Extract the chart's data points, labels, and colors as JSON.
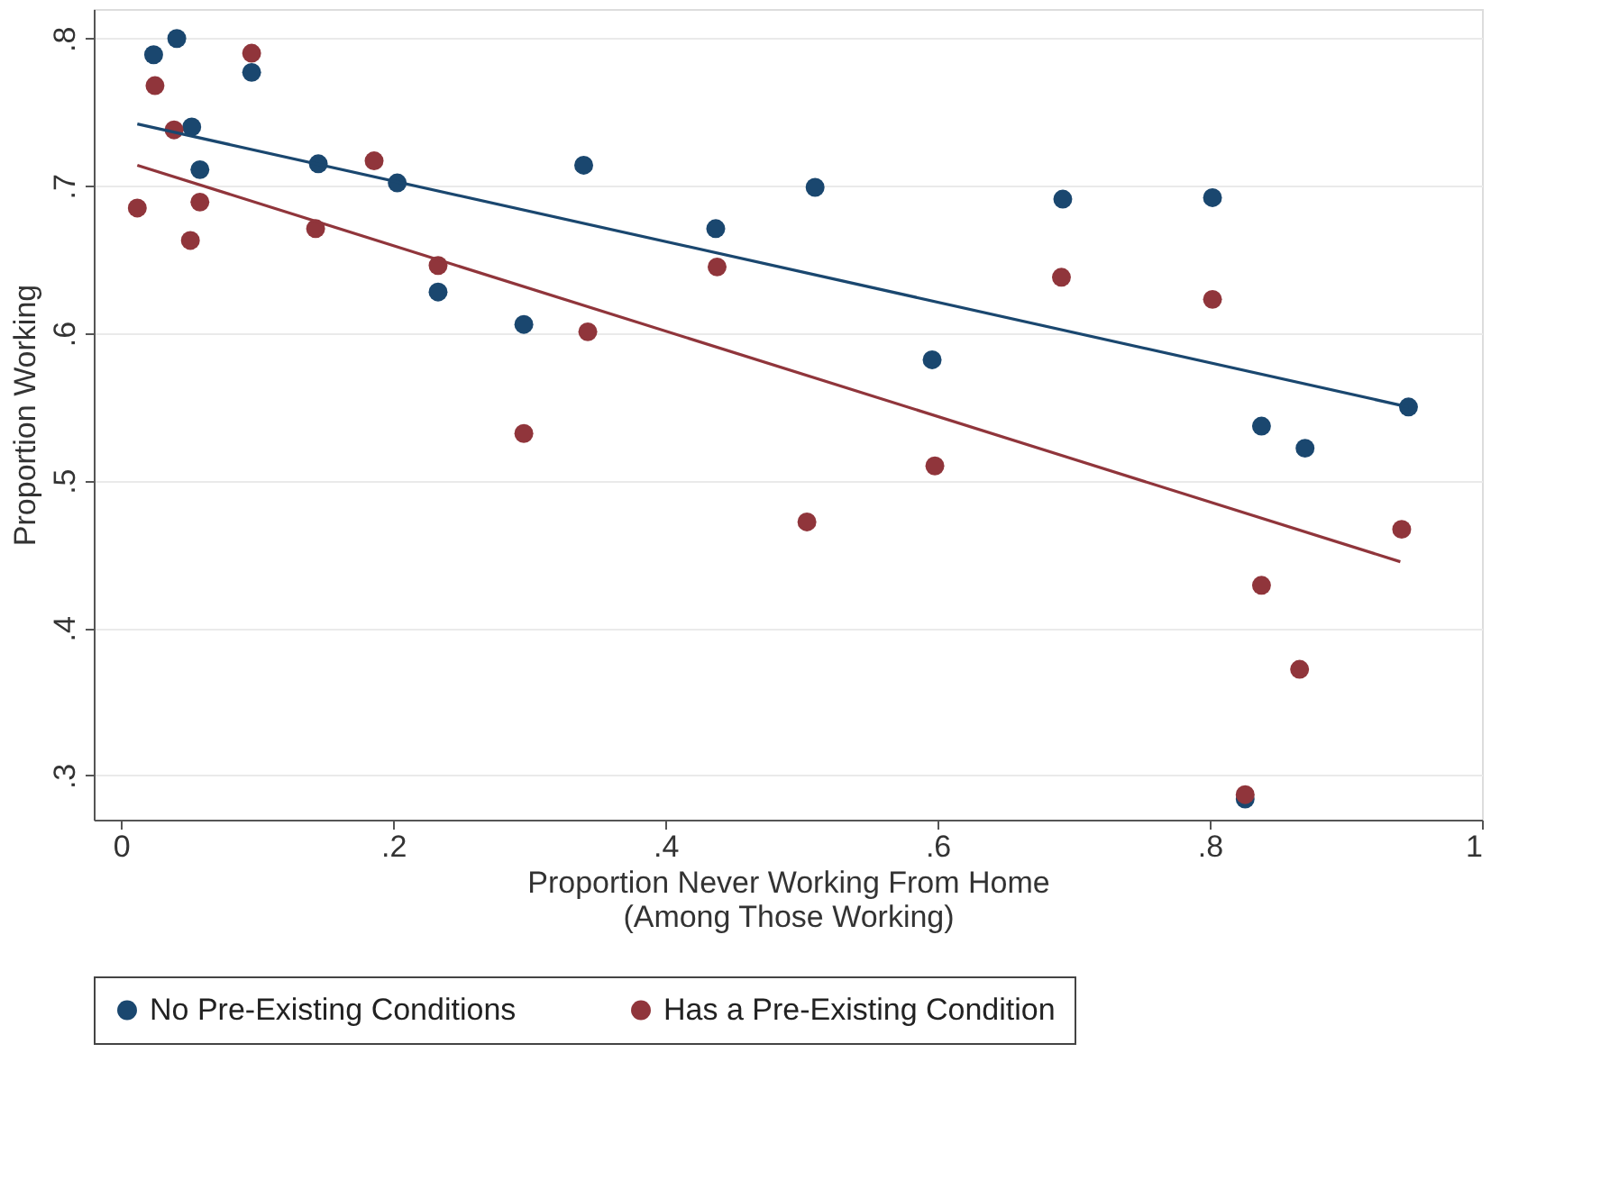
{
  "chart_data": {
    "type": "scatter",
    "xlabel": "Proportion Never Working From Home\n(Among Those Working)",
    "ylabel": "Proportion Working",
    "xlim": [
      -0.02,
      1.0
    ],
    "ylim": [
      0.27,
      0.82
    ],
    "xticks": [
      0,
      {
        "value": 0.2,
        "label": ".2"
      },
      {
        "value": 0.4,
        "label": ".4"
      },
      {
        "value": 0.6,
        "label": ".6"
      },
      {
        "value": 0.8,
        "label": ".8"
      },
      1
    ],
    "yticks": [
      {
        "value": 0.3,
        "label": ".3"
      },
      {
        "value": 0.4,
        "label": ".4"
      },
      {
        "value": 0.5,
        "label": ".5"
      },
      {
        "value": 0.6,
        "label": ".6"
      },
      {
        "value": 0.7,
        "label": ".7"
      },
      {
        "value": 0.8,
        "label": ".8"
      }
    ],
    "grid": "y",
    "legend": "bottom",
    "marker": "circle",
    "series": [
      {
        "name": "No Pre-Existing Conditions",
        "color": "#1a476f",
        "x": [
          0.024,
          0.041,
          0.052,
          0.058,
          0.096,
          0.145,
          0.203,
          0.233,
          0.296,
          0.34,
          0.437,
          0.51,
          0.596,
          0.692,
          0.802,
          0.838,
          0.87,
          0.826,
          0.946
        ],
        "values": [
          0.789,
          0.8,
          0.74,
          0.711,
          0.777,
          0.715,
          0.702,
          0.628,
          0.606,
          0.714,
          0.671,
          0.699,
          0.582,
          0.691,
          0.692,
          0.537,
          0.522,
          0.284,
          0.55
        ]
      },
      {
        "name": "Has a Pre-Existing Condition",
        "color": "#90353b",
        "x": [
          0.012,
          0.025,
          0.039,
          0.051,
          0.058,
          0.096,
          0.143,
          0.186,
          0.233,
          0.296,
          0.343,
          0.438,
          0.504,
          0.598,
          0.691,
          0.802,
          0.838,
          0.866,
          0.826,
          0.941
        ],
        "values": [
          0.685,
          0.768,
          0.738,
          0.663,
          0.689,
          0.79,
          0.671,
          0.717,
          0.646,
          0.532,
          0.601,
          0.645,
          0.472,
          0.51,
          0.638,
          0.623,
          0.429,
          0.372,
          0.287,
          0.467
        ]
      },
      {
        "type": "line",
        "marker": "none",
        "line_style": "solid",
        "color": "#1a476f",
        "x": [
          0.012,
          0.946
        ],
        "values": [
          0.742,
          0.55
        ]
      },
      {
        "type": "line",
        "marker": "none",
        "line_style": "solid",
        "color": "#90353b",
        "x": [
          0.012,
          0.94
        ],
        "values": [
          0.714,
          0.445
        ]
      }
    ]
  }
}
